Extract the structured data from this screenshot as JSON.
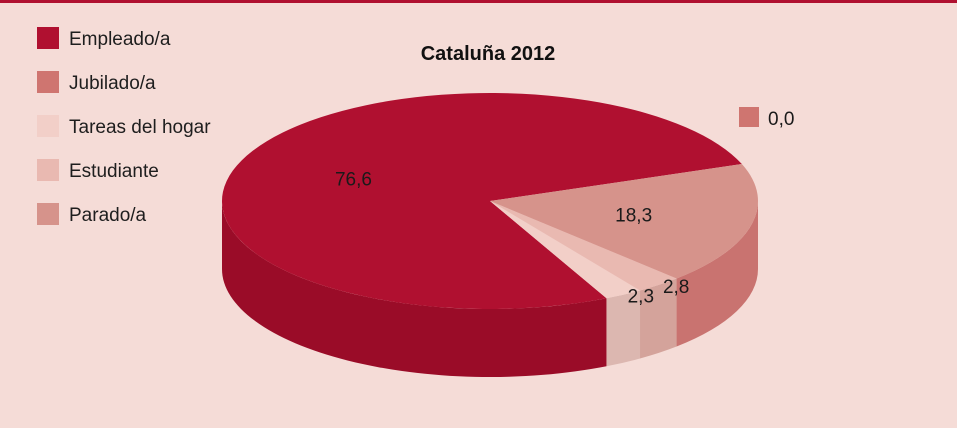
{
  "chart_data": {
    "type": "pie",
    "title": "Cataluña 2012",
    "three_d": true,
    "legend_position": "top-left",
    "categories": [
      "Empleado/a",
      "Jubilado/a",
      "Tareas del hogar",
      "Estudiante",
      "Parado/a"
    ],
    "values": [
      76.6,
      0.0,
      2.3,
      2.8,
      18.3
    ],
    "value_labels": [
      "76,6",
      "0,0",
      "2,3",
      "2,8",
      "18,3"
    ],
    "colors": {
      "Empleado/a": "#b01030",
      "Jubilado/a": "#cf7570",
      "Tareas del hogar": "#f2cfc8",
      "Estudiante": "#e9b9b1",
      "Parado/a": "#d6938b"
    },
    "side_colors": {
      "Empleado/a": "#9a0c28",
      "Jubilado/a": "#b85f5a",
      "Tareas del hogar": "#dcb7b0",
      "Estudiante": "#d4a39b",
      "Parado/a": "#c97370"
    }
  }
}
